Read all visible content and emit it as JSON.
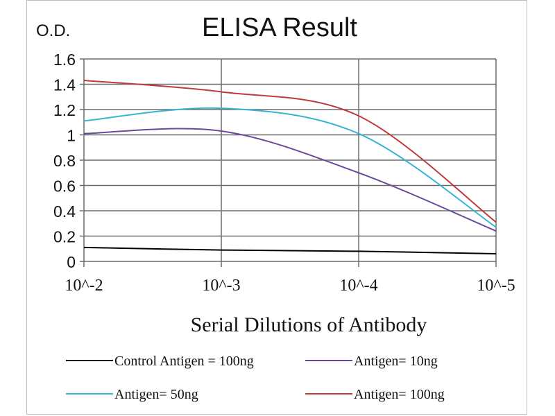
{
  "chart_data": {
    "type": "line",
    "title": "ELISA Result",
    "ylabel": "O.D.",
    "xlabel": "Serial Dilutions  of Antibody",
    "categories": [
      "10^-2",
      "10^-3",
      "10^-4",
      "10^-5"
    ],
    "ylim": [
      0,
      1.6
    ],
    "yticks": [
      "0",
      "0.2",
      "0.4",
      "0.6",
      "0.8",
      "1",
      "1.2",
      "1.4",
      "1.6"
    ],
    "grid": true,
    "legend_placement": "bottom",
    "series": [
      {
        "name": "Control Antigen = 100ng",
        "color": "#000000",
        "values": [
          0.11,
          0.09,
          0.08,
          0.06
        ]
      },
      {
        "name": "Antigen= 10ng",
        "color": "#6a4a9c",
        "values": [
          1.01,
          1.03,
          0.7,
          0.24
        ]
      },
      {
        "name": "Antigen= 50ng",
        "color": "#35b5d0",
        "values": [
          1.11,
          1.21,
          1.01,
          0.27
        ]
      },
      {
        "name": "Antigen= 100ng",
        "color": "#c0393b",
        "values": [
          1.43,
          1.34,
          1.15,
          0.31
        ]
      }
    ]
  }
}
